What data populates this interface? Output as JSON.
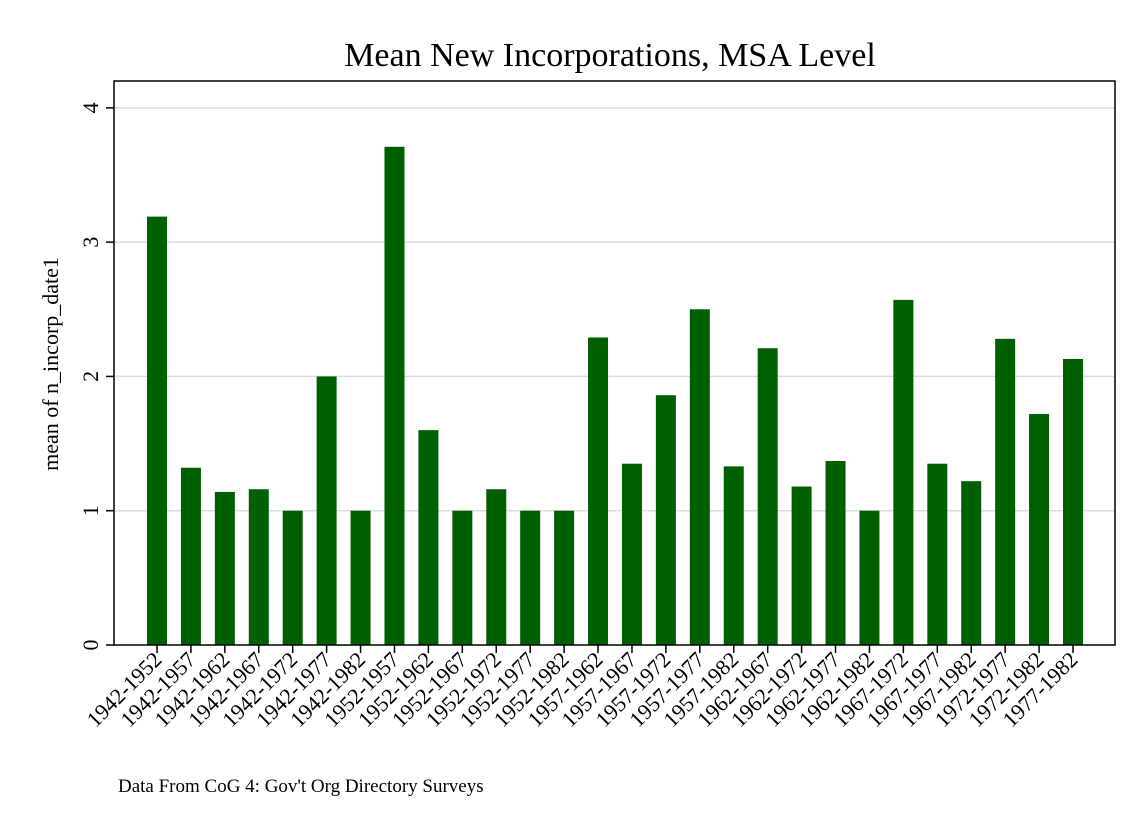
{
  "chart_data": {
    "type": "bar",
    "title": "Mean New Incorporations, MSA Level",
    "xlabel": "",
    "ylabel": "mean of n_incorp_date1",
    "note": "Data From CoG 4: Gov't Org Directory Surveys",
    "ylim": [
      0,
      4.2
    ],
    "yticks": [
      0,
      1,
      2,
      3,
      4
    ],
    "grid": true,
    "legend": "none",
    "bar_color": "#005f00",
    "categories": [
      "1942-1952",
      "1942-1957",
      "1942-1962",
      "1942-1967",
      "1942-1972",
      "1942-1977",
      "1942-1982",
      "1952-1957",
      "1952-1962",
      "1952-1967",
      "1952-1972",
      "1952-1977",
      "1952-1982",
      "1957-1962",
      "1957-1967",
      "1957-1972",
      "1957-1977",
      "1957-1982",
      "1962-1967",
      "1962-1972",
      "1962-1977",
      "1962-1982",
      "1967-1972",
      "1967-1977",
      "1967-1982",
      "1972-1977",
      "1972-1982",
      "1977-1982"
    ],
    "values": [
      3.19,
      1.32,
      1.14,
      1.16,
      1.0,
      2.0,
      1.0,
      3.71,
      1.6,
      1.0,
      1.16,
      1.0,
      1.0,
      2.29,
      1.35,
      1.86,
      2.5,
      1.33,
      2.21,
      1.18,
      1.37,
      1.0,
      2.57,
      1.35,
      1.22,
      2.28,
      1.72,
      2.13
    ]
  }
}
